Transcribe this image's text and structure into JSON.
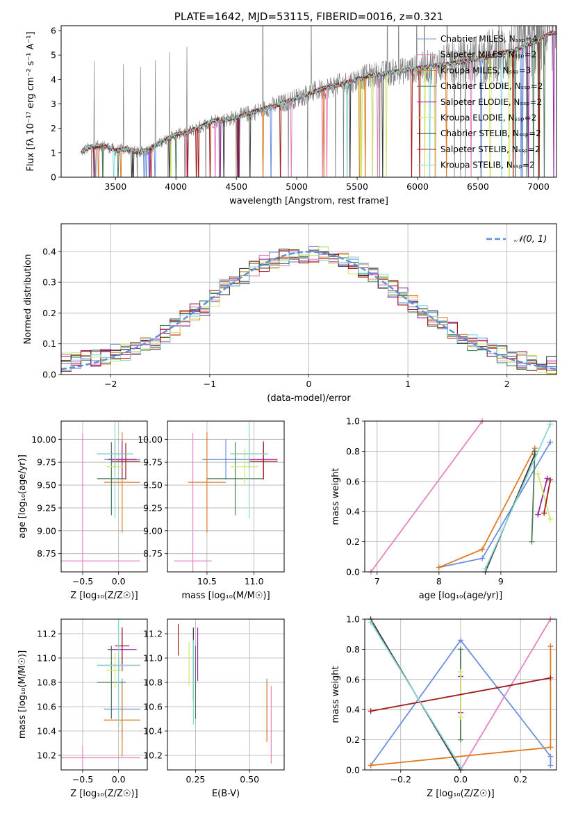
{
  "colors": {
    "chabrier_miles": "#6b8fdb",
    "salpeter_miles": "#e583c0",
    "kroupa_miles": "#e07b22",
    "chabrier_elodie": "#4a7a5a",
    "salpeter_elodie": "#9a24a8",
    "kroupa_elodie": "#d4e86a",
    "chabrier_stelib": "#3a3a3a",
    "salpeter_stelib": "#a01818",
    "kroupa_stelib": "#86d6d6",
    "data": "#808080",
    "normal": "#5b8fd6",
    "grid": "#b0b0b0"
  },
  "chart_data": [
    {
      "id": "spectrum",
      "type": "line",
      "title": "PLATE=1642, MJD=53115, FIBERID=0016, z=0.321",
      "xlabel": "wavelength [Angstrom, rest frame]",
      "ylabel": "Flux [fλ 10⁻¹⁷ erg cm⁻² s⁻¹ A⁻¹]",
      "xlim": [
        3050,
        7150
      ],
      "ylim": [
        0,
        6.2
      ],
      "xticks": [
        3500,
        4000,
        4500,
        5000,
        5500,
        6000,
        6500,
        7000
      ],
      "yticks": [
        0,
        1,
        2,
        3,
        4,
        5,
        6
      ],
      "grid": false,
      "legend_position": "top-right",
      "model_shape": {
        "x": [
          3200,
          3300,
          3400,
          3500,
          3600,
          3700,
          3800,
          3900,
          4000,
          4100,
          4200,
          4300,
          4400,
          4500,
          4600,
          4700,
          4800,
          4900,
          5000,
          5200,
          5400,
          5600,
          5800,
          6000,
          6200,
          6400,
          6600,
          6800,
          7000,
          7100
        ],
        "y": [
          1.0,
          1.25,
          1.3,
          1.1,
          1.15,
          1.0,
          1.2,
          1.5,
          1.75,
          1.85,
          2.05,
          2.3,
          2.35,
          2.45,
          2.6,
          2.75,
          2.9,
          3.05,
          3.25,
          3.6,
          3.85,
          4.15,
          4.3,
          4.45,
          4.6,
          4.75,
          4.95,
          5.2,
          5.6,
          5.9
        ]
      },
      "series": [
        {
          "name": "Chabrier MILES, Nₛₛₚ=4",
          "color_key": "chabrier_miles"
        },
        {
          "name": "Salpeter MILES, Nₛₛₚ=2",
          "color_key": "salpeter_miles"
        },
        {
          "name": "Kroupa MILES, Nₛₛₚ=3",
          "color_key": "kroupa_miles"
        },
        {
          "name": "Chabrier ELODIE, Nₛₛₚ=2",
          "color_key": "chabrier_elodie"
        },
        {
          "name": "Salpeter ELODIE, Nₛₛₚ=2",
          "color_key": "salpeter_elodie"
        },
        {
          "name": "Kroupa ELODIE, Nₛₛₚ=2",
          "color_key": "kroupa_elodie"
        },
        {
          "name": "Chabrier STELIB, Nₛₛₚ=2",
          "color_key": "chabrier_stelib"
        },
        {
          "name": "Salpeter STELIB, Nₛₛₚ=2",
          "color_key": "salpeter_stelib"
        },
        {
          "name": "Kroupa STELIB, Nₛₛₚ=2",
          "color_key": "kroupa_stelib"
        }
      ]
    },
    {
      "id": "residuals",
      "type": "bar",
      "xlabel": "(data-model)/error",
      "ylabel": "Normed distribution",
      "xlim": [
        -2.5,
        2.5
      ],
      "ylim": [
        0,
        0.49
      ],
      "xticks": [
        -2,
        -1,
        0,
        1,
        2
      ],
      "yticks": [
        0.0,
        0.1,
        0.2,
        0.3,
        0.4
      ],
      "grid": true,
      "legend_position": "top-right",
      "normal_label": "𝒩(0, 1)",
      "bin_edges_start": -2.5,
      "bin_width": 0.1,
      "hist_values": [
        0.04,
        0.045,
        0.05,
        0.055,
        0.06,
        0.07,
        0.075,
        0.09,
        0.1,
        0.11,
        0.13,
        0.155,
        0.18,
        0.2,
        0.22,
        0.25,
        0.28,
        0.3,
        0.32,
        0.34,
        0.36,
        0.37,
        0.38,
        0.39,
        0.39,
        0.39,
        0.39,
        0.38,
        0.37,
        0.355,
        0.34,
        0.32,
        0.3,
        0.28,
        0.255,
        0.23,
        0.205,
        0.18,
        0.16,
        0.14,
        0.12,
        0.105,
        0.09,
        0.08,
        0.065,
        0.055,
        0.045,
        0.04,
        0.035,
        0.03
      ]
    },
    {
      "id": "age_vs_Z",
      "type": "scatter",
      "xlabel": "Z [log₁₀(Z/Z☉)]",
      "ylabel": "age  [log₁₀(age/yr)]",
      "xlim": [
        -0.8,
        0.4
      ],
      "ylim": [
        8.55,
        10.2
      ],
      "xticks": [
        -0.5,
        0.0
      ],
      "yticks": [
        8.75,
        9.0,
        9.25,
        9.5,
        9.75,
        10.0
      ],
      "grid": true,
      "points": [
        {
          "series": "chabrier_miles",
          "x": 0.05,
          "y": 9.78,
          "xerr": 0.25,
          "yerr": 0.22
        },
        {
          "series": "salpeter_miles",
          "x": -0.5,
          "y": 8.67,
          "xerr": 0.8,
          "yerr": 1.4
        },
        {
          "series": "kroupa_miles",
          "x": 0.05,
          "y": 9.53,
          "xerr": 0.25,
          "yerr": 0.55
        },
        {
          "series": "chabrier_elodie",
          "x": -0.1,
          "y": 9.57,
          "xerr": 0.2,
          "yerr": 0.4
        },
        {
          "series": "salpeter_elodie",
          "x": 0.05,
          "y": 9.78,
          "xerr": 0.2,
          "yerr": 0.2
        },
        {
          "series": "kroupa_elodie",
          "x": -0.05,
          "y": 9.7,
          "xerr": 0.12,
          "yerr": 0.2
        },
        {
          "series": "chabrier_stelib",
          "x": -0.05,
          "y": 9.84,
          "xerr": 0.25,
          "yerr": 0.15
        },
        {
          "series": "salpeter_stelib",
          "x": 0.1,
          "y": 9.76,
          "xerr": 0.2,
          "yerr": 0.2
        },
        {
          "series": "kroupa_stelib",
          "x": -0.05,
          "y": 9.84,
          "xerr": 0.25,
          "yerr": 0.7
        }
      ]
    },
    {
      "id": "age_vs_mass",
      "type": "scatter",
      "xlabel": "mass [log₁₀(M/M☉)]",
      "ylabel": "",
      "xlim": [
        10.08,
        11.32
      ],
      "ylim": [
        8.55,
        10.2
      ],
      "xticks": [
        10.5,
        11.0
      ],
      "yticks": [
        8.75,
        9.0,
        9.25,
        9.5,
        9.75,
        10.0
      ],
      "grid": true,
      "points": [
        {
          "series": "chabrier_miles",
          "x": 10.7,
          "y": 9.78,
          "xerr": 0.25,
          "yerr": 0.22
        },
        {
          "series": "salpeter_miles",
          "x": 10.35,
          "y": 8.67,
          "xerr": 0.2,
          "yerr": 1.4
        },
        {
          "series": "kroupa_miles",
          "x": 10.5,
          "y": 9.53,
          "xerr": 0.2,
          "yerr": 0.55
        },
        {
          "series": "chabrier_elodie",
          "x": 10.8,
          "y": 9.57,
          "xerr": 0.3,
          "yerr": 0.4
        },
        {
          "series": "salpeter_elodie",
          "x": 11.1,
          "y": 9.78,
          "xerr": 0.15,
          "yerr": 0.2
        },
        {
          "series": "kroupa_elodie",
          "x": 10.9,
          "y": 9.7,
          "xerr": 0.15,
          "yerr": 0.2
        },
        {
          "series": "chabrier_stelib",
          "x": 10.95,
          "y": 9.84,
          "xerr": 0.2,
          "yerr": 0.15
        },
        {
          "series": "salpeter_stelib",
          "x": 11.1,
          "y": 9.76,
          "xerr": 0.15,
          "yerr": 0.2
        },
        {
          "series": "kroupa_stelib",
          "x": 10.95,
          "y": 9.84,
          "xerr": 0.2,
          "yerr": 0.7
        }
      ]
    },
    {
      "id": "weight_vs_age",
      "type": "line",
      "xlabel": "age  [log₁₀(age/yr)]",
      "ylabel": "mass weight",
      "xlim": [
        6.8,
        9.9
      ],
      "ylim": [
        0,
        1
      ],
      "xticks": [
        7,
        8,
        9
      ],
      "yticks": [
        0.0,
        0.2,
        0.4,
        0.6,
        0.8,
        1.0
      ],
      "grid": true,
      "series": [
        {
          "series": "chabrier_miles",
          "x": [
            8.0,
            8.7,
            9.8
          ],
          "y": [
            0.03,
            0.09,
            0.86
          ]
        },
        {
          "series": "salpeter_miles",
          "x": [
            6.9,
            8.7
          ],
          "y": [
            0.0,
            1.0
          ]
        },
        {
          "series": "kroupa_miles",
          "x": [
            8.0,
            8.7,
            9.55
          ],
          "y": [
            0.03,
            0.15,
            0.82
          ]
        },
        {
          "series": "chabrier_elodie",
          "x": [
            9.5,
            9.55
          ],
          "y": [
            0.2,
            0.8
          ]
        },
        {
          "series": "salpeter_elodie",
          "x": [
            9.6,
            9.75
          ],
          "y": [
            0.38,
            0.62
          ]
        },
        {
          "series": "kroupa_elodie",
          "x": [
            9.6,
            9.8
          ],
          "y": [
            0.65,
            0.35
          ]
        },
        {
          "series": "chabrier_stelib",
          "x": [
            8.75,
            9.55
          ],
          "y": [
            0.0,
            0.78
          ]
        },
        {
          "series": "salpeter_stelib",
          "x": [
            9.7,
            9.8
          ],
          "y": [
            0.39,
            0.61
          ]
        },
        {
          "series": "kroupa_stelib",
          "x": [
            8.75,
            9.8
          ],
          "y": [
            0.02,
            0.98
          ]
        }
      ]
    },
    {
      "id": "mass_vs_Z",
      "type": "scatter",
      "xlabel": "Z [log₁₀(Z/Z☉)]",
      "ylabel": "mass [log₁₀(M/M☉)]",
      "xlim": [
        -0.8,
        0.4
      ],
      "ylim": [
        10.08,
        11.32
      ],
      "xticks": [
        -0.5,
        0.0
      ],
      "yticks": [
        10.2,
        10.4,
        10.6,
        10.8,
        11.0,
        11.2
      ],
      "grid": true,
      "points": [
        {
          "series": "chabrier_miles",
          "x": 0.05,
          "y": 10.58,
          "xerr": 0.25,
          "yerr": 0.25
        },
        {
          "series": "salpeter_miles",
          "x": -0.5,
          "y": 10.18,
          "xerr": 0.8,
          "yerr": 0.1
        },
        {
          "series": "kroupa_miles",
          "x": 0.05,
          "y": 10.49,
          "xerr": 0.25,
          "yerr": 0.3
        },
        {
          "series": "chabrier_elodie",
          "x": -0.1,
          "y": 10.8,
          "xerr": 0.2,
          "yerr": 0.3
        },
        {
          "series": "salpeter_elodie",
          "x": 0.05,
          "y": 11.07,
          "xerr": 0.2,
          "yerr": 0.18
        },
        {
          "series": "kroupa_elodie",
          "x": -0.05,
          "y": 10.9,
          "xerr": 0.12,
          "yerr": 0.15
        },
        {
          "series": "chabrier_stelib",
          "x": 0.0,
          "y": 10.94,
          "xerr": 0.3,
          "yerr": 0.05
        },
        {
          "series": "salpeter_stelib",
          "x": 0.05,
          "y": 11.1,
          "xerr": 0.1,
          "yerr": 0.15
        },
        {
          "series": "kroupa_stelib",
          "x": 0.0,
          "y": 10.94,
          "xerr": 0.3,
          "yerr": 0.5
        }
      ]
    },
    {
      "id": "mass_vs_ebv",
      "type": "scatter",
      "xlabel": "E(B-V)",
      "ylabel": "",
      "xlim": [
        0.12,
        0.66
      ],
      "ylim": [
        10.08,
        11.32
      ],
      "xticks": [
        0.25,
        0.5
      ],
      "yticks": [
        10.2,
        10.4,
        10.6,
        10.8,
        11.0,
        11.2
      ],
      "grid": true,
      "points": [
        {
          "series": "chabrier_miles",
          "x": 0.58,
          "y": 10.58,
          "yerr": 0.25
        },
        {
          "series": "salpeter_miles",
          "x": 0.6,
          "y": 10.45,
          "yerr": 0.32
        },
        {
          "series": "kroupa_miles",
          "x": 0.58,
          "y": 10.56,
          "yerr": 0.25
        },
        {
          "series": "chabrier_elodie",
          "x": 0.25,
          "y": 10.8,
          "yerr": 0.3
        },
        {
          "series": "salpeter_elodie",
          "x": 0.26,
          "y": 11.03,
          "yerr": 0.22
        },
        {
          "series": "kroupa_elodie",
          "x": 0.22,
          "y": 10.95,
          "yerr": 0.18
        },
        {
          "series": "chabrier_stelib",
          "x": 0.24,
          "y": 10.95,
          "yerr": 0.3
        },
        {
          "series": "salpeter_stelib",
          "x": 0.17,
          "y": 11.15,
          "yerr": 0.13
        },
        {
          "series": "kroupa_stelib",
          "x": 0.24,
          "y": 10.8,
          "yerr": 0.35
        }
      ]
    },
    {
      "id": "weight_vs_Z",
      "type": "line",
      "xlabel": "Z [log₁₀(Z/Z☉)]",
      "ylabel": "mass weight",
      "xlim": [
        -0.32,
        0.32
      ],
      "ylim": [
        0,
        1
      ],
      "xticks": [
        -0.2,
        0.0,
        0.2
      ],
      "yticks": [
        0.0,
        0.2,
        0.4,
        0.6,
        0.8,
        1.0
      ],
      "grid": true,
      "series": [
        {
          "series": "chabrier_miles",
          "x": [
            -0.3,
            0.0,
            0.3,
            0.3
          ],
          "y": [
            0.03,
            0.86,
            0.09,
            0.03
          ]
        },
        {
          "series": "salpeter_miles",
          "x": [
            0.0,
            0.3
          ],
          "y": [
            0.0,
            1.0
          ]
        },
        {
          "series": "kroupa_miles",
          "x": [
            -0.3,
            0.3,
            0.3
          ],
          "y": [
            0.03,
            0.15,
            0.82
          ]
        },
        {
          "series": "chabrier_elodie",
          "x": [
            0.0,
            0.0
          ],
          "y": [
            0.2,
            0.8
          ]
        },
        {
          "series": "salpeter_elodie",
          "x": [
            0.0,
            0.0
          ],
          "y": [
            0.38,
            0.62
          ]
        },
        {
          "series": "kroupa_elodie",
          "x": [
            0.0,
            0.0
          ],
          "y": [
            0.35,
            0.65
          ]
        },
        {
          "series": "chabrier_stelib",
          "x": [
            -0.3,
            0.0
          ],
          "y": [
            1.0,
            0.0
          ]
        },
        {
          "series": "salpeter_stelib",
          "x": [
            -0.3,
            0.3
          ],
          "y": [
            0.39,
            0.61
          ]
        },
        {
          "series": "kroupa_stelib",
          "x": [
            -0.3,
            0.0
          ],
          "y": [
            0.98,
            0.02
          ]
        }
      ]
    }
  ]
}
